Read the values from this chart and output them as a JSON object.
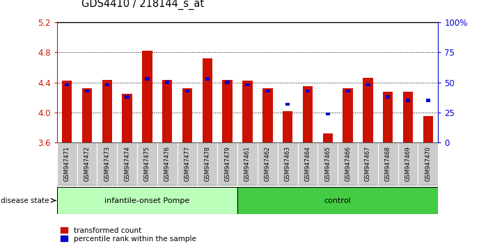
{
  "title": "GDS4410 / 218144_s_at",
  "samples": [
    "GSM947471",
    "GSM947472",
    "GSM947473",
    "GSM947474",
    "GSM947475",
    "GSM947476",
    "GSM947477",
    "GSM947478",
    "GSM947479",
    "GSM947461",
    "GSM947462",
    "GSM947463",
    "GSM947464",
    "GSM947465",
    "GSM947466",
    "GSM947467",
    "GSM947468",
    "GSM947469",
    "GSM947470"
  ],
  "red_values": [
    4.42,
    4.32,
    4.43,
    4.25,
    4.82,
    4.43,
    4.32,
    4.72,
    4.43,
    4.42,
    4.32,
    4.02,
    4.35,
    3.72,
    4.32,
    4.46,
    4.28,
    4.28,
    3.95
  ],
  "blue_percentiles": [
    48,
    43,
    48,
    38,
    53,
    50,
    43,
    53,
    50,
    48,
    43,
    32,
    43,
    24,
    43,
    48,
    38,
    35,
    35
  ],
  "group1_label": "infantile-onset Pompe",
  "group2_label": "control",
  "group1_count": 9,
  "group2_count": 10,
  "ylim_left": [
    3.6,
    5.2
  ],
  "yticks_left": [
    3.6,
    4.0,
    4.4,
    4.8,
    5.2
  ],
  "yticks_right": [
    0,
    25,
    50,
    75,
    100
  ],
  "bar_color": "#cc1100",
  "blue_color": "#0000cc",
  "group1_bg": "#bbffbb",
  "group2_bg": "#44cc44",
  "sample_bg": "#cccccc",
  "legend_red": "transformed count",
  "legend_blue": "percentile rank within the sample",
  "disease_state_label": "disease state"
}
